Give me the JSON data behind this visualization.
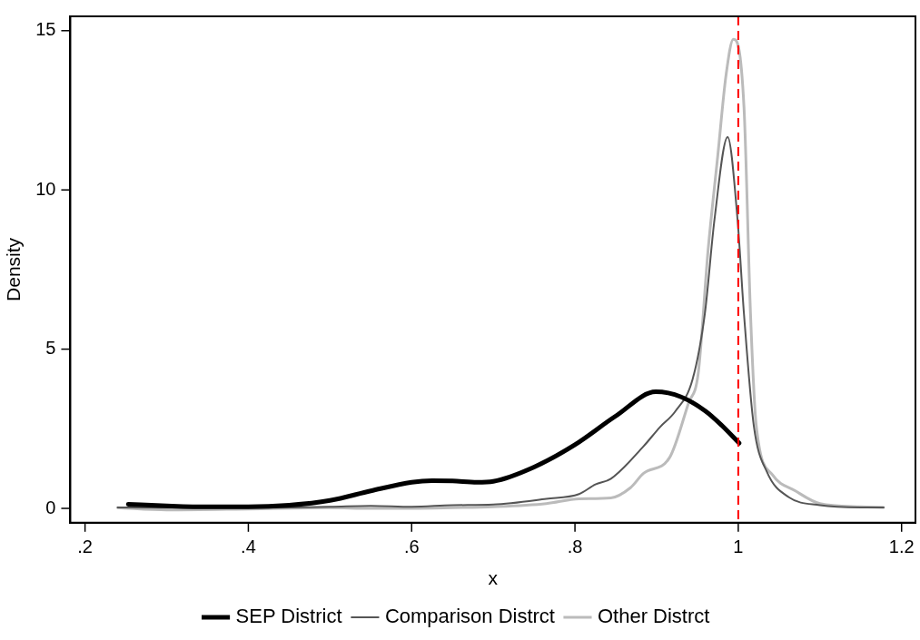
{
  "chart_data": {
    "type": "line",
    "xlabel": "x",
    "ylabel": "Density",
    "xlim": [
      0.182,
      1.217
    ],
    "ylim": [
      -0.45,
      15.45
    ],
    "xticks": [
      {
        "value": 0.2,
        "label": ".2"
      },
      {
        "value": 0.4,
        "label": ".4"
      },
      {
        "value": 0.6,
        "label": ".6"
      },
      {
        "value": 0.8,
        "label": ".8"
      },
      1,
      1.2
    ],
    "yticks": [
      0,
      5,
      10,
      15
    ],
    "grid": false,
    "legend": "bottom",
    "marker": "none",
    "ref_lines": [
      {
        "axis": "x",
        "value": 1,
        "color": "#ff0000",
        "line_style": "dashed"
      }
    ],
    "series": [
      {
        "name": "SEP District",
        "color": "#000000",
        "x": [
          0.253,
          0.3,
          0.35,
          0.4,
          0.45,
          0.5,
          0.55,
          0.6,
          0.625,
          0.65,
          0.68,
          0.7,
          0.75,
          0.8,
          0.85,
          0.899,
          0.93,
          0.96,
          0.98,
          1.001
        ],
        "values": [
          0.13,
          0.08,
          0.05,
          0.05,
          0.1,
          0.25,
          0.55,
          0.82,
          0.87,
          0.86,
          0.82,
          0.85,
          1.3,
          2.0,
          2.9,
          3.66,
          3.5,
          3.05,
          2.6,
          2.05
        ]
      },
      {
        "name": "Comparison Distrct",
        "color": "#555555",
        "x": [
          0.24,
          0.3,
          0.4,
          0.5,
          0.55,
          0.6,
          0.65,
          0.7,
          0.765,
          0.805,
          0.825,
          0.844,
          0.884,
          0.904,
          0.923,
          0.944,
          0.959,
          0.971,
          0.987,
          0.999,
          1.007,
          1.019,
          1.035,
          1.062,
          1.1,
          1.15,
          1.178
        ],
        "values": [
          0.03,
          0.02,
          0.02,
          0.05,
          0.08,
          0.05,
          0.1,
          0.12,
          0.3,
          0.45,
          0.75,
          0.93,
          1.95,
          2.55,
          3.05,
          4.05,
          6.1,
          9.1,
          11.66,
          9.1,
          6.1,
          2.6,
          1.15,
          0.35,
          0.1,
          0.03,
          0.03
        ]
      },
      {
        "name": "Other Distrct",
        "color": "#bbbbbb",
        "x": [
          0.24,
          0.3,
          0.4,
          0.5,
          0.55,
          0.6,
          0.65,
          0.7,
          0.765,
          0.805,
          0.844,
          0.868,
          0.884,
          0.916,
          0.939,
          0.951,
          0.963,
          0.975,
          0.985,
          0.994,
          1.007,
          1.015,
          1.022,
          1.042,
          1.07,
          1.1,
          1.15,
          1.178
        ],
        "values": [
          0.02,
          -0.05,
          -0.02,
          0.02,
          0.0,
          0.0,
          0.02,
          0.05,
          0.15,
          0.3,
          0.33,
          0.65,
          1.1,
          1.6,
          3.3,
          4.25,
          8.1,
          11.1,
          13.6,
          14.73,
          12.6,
          6.1,
          2.6,
          1.05,
          0.55,
          0.15,
          0.05,
          0.03
        ]
      }
    ]
  }
}
